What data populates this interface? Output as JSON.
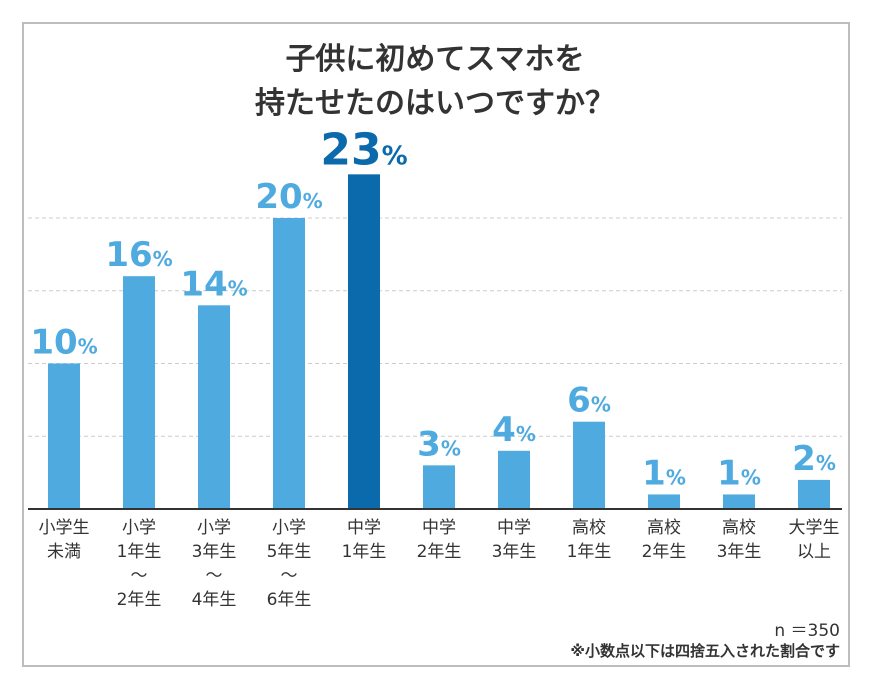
{
  "chart_data": {
    "type": "bar",
    "title_lines": [
      "子供に初めてスマホを",
      "持たせたのはいつですか？"
    ],
    "categories": [
      [
        "小学生",
        "未満"
      ],
      [
        "小学",
        "1年生",
        "〜",
        "2年生"
      ],
      [
        "小学",
        "3年生",
        "〜",
        "4年生"
      ],
      [
        "小学",
        "5年生",
        "〜",
        "6年生"
      ],
      [
        "中学",
        "1年生"
      ],
      [
        "中学",
        "2年生"
      ],
      [
        "中学",
        "3年生"
      ],
      [
        "高校",
        "1年生"
      ],
      [
        "高校",
        "2年生"
      ],
      [
        "高校",
        "3年生"
      ],
      [
        "大学生",
        "以上"
      ]
    ],
    "values": [
      10,
      16,
      14,
      20,
      23,
      3,
      4,
      6,
      1,
      1,
      2
    ],
    "unit": "%",
    "highlight_index": 4,
    "ylim": [
      0,
      23
    ],
    "grid": true,
    "grid_values": [
      5,
      10,
      15,
      20
    ],
    "colors": {
      "bar": "#4eaadf",
      "highlight": "#0b6aab",
      "grid": "#cccccc",
      "axis": "#333333"
    }
  },
  "footer": {
    "sample": "n ＝350",
    "note": "※小数点以下は四捨五入された割合です"
  }
}
